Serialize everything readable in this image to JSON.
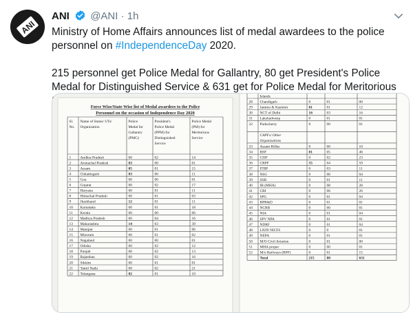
{
  "tweet": {
    "author_name": "ANI",
    "author_handle": "@ANI",
    "separator": "·",
    "time": "1h",
    "avatar_text": "ANI",
    "line1_pre": "Ministry of Home Affairs announces list of medal awardees to the police personnel on ",
    "hashtag": "#IndependenceDay",
    "line1_post": " 2020.",
    "line2": "215 personnel get Police Medal for Gallantry, 80 get President's Police Medal for Distinguished Service & 631 get for Police Medal for Meritorious Service."
  },
  "colors": {
    "link": "#1b95e0",
    "verified": "#1da1f2",
    "muted": "#657786",
    "border": "#ccd6dd"
  },
  "icons": [
    "verified-badge-icon",
    "caret-down-icon"
  ],
  "document": {
    "title_line1": "Force Wise/State Wise list of Medal awardees to the Police",
    "title_line2": "Personnel on the occasion of Independence Day 2020",
    "headers": [
      "Sl. No.",
      "Name of States/ UTs/ Organization",
      "Police Medal for Gallantry (PMG)",
      "President's Police Medal (PPM) for Distinguished Service",
      "Police Medal (PM) for Meritorious Service"
    ],
    "left_rows": [
      [
        "1",
        "Andhra Pradesh",
        "00",
        "02",
        "14"
      ],
      [
        "2",
        "Arunachal Pradesh",
        "03",
        "00",
        "01"
      ],
      [
        "3",
        "Assam",
        "05",
        "01",
        "15"
      ],
      [
        "4",
        "Chhattisgarh",
        "03",
        "00",
        "11"
      ],
      [
        "5",
        "Goa",
        "00",
        "00",
        "01"
      ],
      [
        "6",
        "Gujarat",
        "00",
        "02",
        "17"
      ],
      [
        "7",
        "Haryana",
        "00",
        "01",
        "11"
      ],
      [
        "8",
        "Himachal Pradesh",
        "00",
        "01",
        "03"
      ],
      [
        "9",
        "Jharkhand",
        "12",
        "01",
        "11"
      ],
      [
        "10",
        "Karnataka",
        "00",
        "01",
        "18"
      ],
      [
        "11",
        "Kerala",
        "00",
        "00",
        "06"
      ],
      [
        "12",
        "Madhya Pradesh",
        "00",
        "04",
        "16"
      ],
      [
        "13",
        "Maharashtra",
        "14",
        "03",
        "39"
      ],
      [
        "14",
        "Manipur",
        "00",
        "01",
        "06"
      ],
      [
        "15",
        "Mizoram",
        "00",
        "01",
        "02"
      ],
      [
        "16",
        "Nagaland",
        "00",
        "00",
        "01"
      ],
      [
        "17",
        "Odisha",
        "00",
        "02",
        "12"
      ],
      [
        "18",
        "Punjab",
        "00",
        "02",
        "13"
      ],
      [
        "19",
        "Rajasthan",
        "00",
        "02",
        "16"
      ],
      [
        "20",
        "Sikkim",
        "00",
        "01",
        "01"
      ],
      [
        "21",
        "Tamil Nadu",
        "00",
        "02",
        "21"
      ],
      [
        "22",
        "Telangana",
        "02",
        "01",
        "10"
      ]
    ],
    "right_top_label": "Islands",
    "right_rows": [
      [
        "28",
        "Chandigarh",
        "0",
        "01",
        "00"
      ],
      [
        "29",
        "Jammu & Kashmir",
        "81",
        "01",
        "12"
      ],
      [
        "30",
        "NCT of Delhi",
        "16",
        "03",
        "16"
      ],
      [
        "31",
        "Lakshadweep",
        "0",
        "01",
        "01"
      ],
      [
        "32",
        "Puducherry",
        "0",
        "00",
        "01"
      ],
      [
        "",
        "CAPFs/ Other Organizations",
        "",
        "",
        ""
      ],
      [
        "33",
        "Assam Rifles",
        "0",
        "00",
        "10"
      ],
      [
        "34",
        "BSF",
        "01",
        "05",
        "46"
      ],
      [
        "35",
        "CISF",
        "0",
        "02",
        "23"
      ],
      [
        "36",
        "CRPF",
        "55",
        "04",
        "59"
      ],
      [
        "37",
        "ITBP",
        "0",
        "03",
        "11"
      ],
      [
        "38",
        "NSG",
        "0",
        "00",
        "04"
      ],
      [
        "39",
        "SSB",
        "0",
        "01",
        "11"
      ],
      [
        "40",
        "IB (MHA)",
        "0",
        "08",
        "28"
      ],
      [
        "41",
        "CBI",
        "0",
        "06",
        "26"
      ],
      [
        "42",
        "SPG",
        "0",
        "01",
        "04"
      ],
      [
        "43",
        "BPR&D",
        "0",
        "01",
        "01"
      ],
      [
        "44",
        "NCRB",
        "0",
        "00",
        "01"
      ],
      [
        "45",
        "NIA",
        "0",
        "01",
        "04"
      ],
      [
        "46",
        "SPV NPA",
        "0",
        "01",
        "01"
      ],
      [
        "47",
        "NDRF",
        "0",
        "01",
        "04"
      ],
      [
        "48",
        "LNJN NICFS",
        "0",
        "0",
        "01"
      ],
      [
        "49",
        "NEPA",
        "0",
        "01",
        "01"
      ],
      [
        "50",
        "M/O Civil Aviation",
        "0",
        "01",
        "00"
      ],
      [
        "51",
        "MHA proper",
        "0",
        "00",
        "01"
      ],
      [
        "52",
        "M/o Railways (RPF)",
        "0",
        "01",
        "15"
      ],
      [
        "",
        "Total",
        "215",
        "80",
        "631"
      ]
    ]
  }
}
